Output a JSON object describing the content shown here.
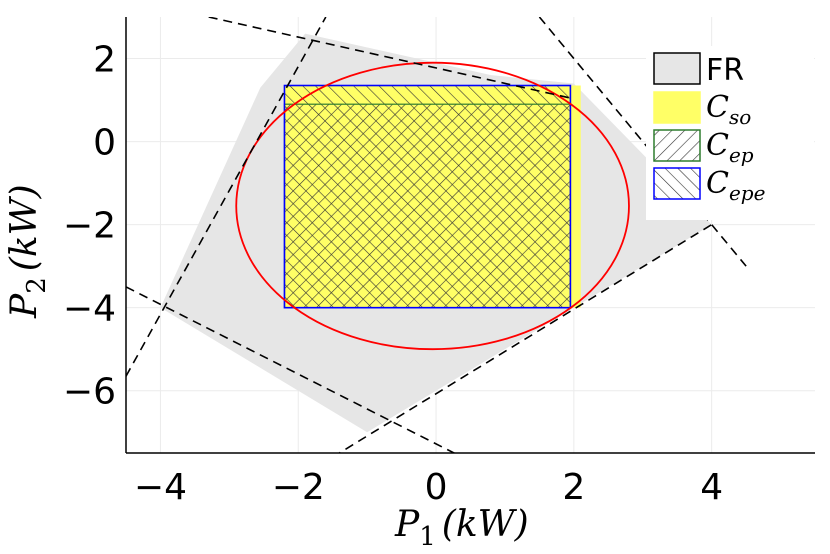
{
  "chart_data": {
    "type": "area",
    "xlabel": {
      "main": "P",
      "sub": "1",
      "unit": "(kW)"
    },
    "ylabel": {
      "main": "P",
      "sub": "2",
      "unit": "(kW)"
    },
    "xlim": [
      -4.5,
      5.5
    ],
    "ylim": [
      -7.5,
      3.0
    ],
    "xticks": [
      -4,
      -2,
      0,
      2,
      4
    ],
    "yticks": [
      -6,
      -4,
      -2,
      0,
      2
    ],
    "xtick_labels": [
      "−4",
      "−2",
      "0",
      "2",
      "4"
    ],
    "ytick_labels": [
      "−6",
      "−4",
      "−2",
      "0",
      "2"
    ],
    "grid": true,
    "legend_position": "top-right",
    "feasible_region": {
      "name": "FR",
      "polygon": [
        [
          -1.9,
          2.6
        ],
        [
          -2.55,
          1.3
        ],
        [
          -4.0,
          -4.0
        ],
        [
          -1.0,
          -7.0
        ],
        [
          4.0,
          -2.0
        ],
        [
          2.0,
          1.4
        ],
        [
          0.8,
          1.6
        ]
      ],
      "color": "#e6e6e6"
    },
    "boundary_lines": [
      {
        "x": [
          -3.3,
          2.0
        ],
        "y": [
          3.0,
          1.03
        ]
      },
      {
        "x": [
          1.5,
          4.5
        ],
        "y": [
          3.0,
          -3.0
        ]
      },
      {
        "x": [
          -4.5,
          0.5
        ],
        "y": [
          -3.5,
          -7.7
        ]
      },
      {
        "x": [
          -1.5,
          4.0
        ],
        "y": [
          -7.6,
          -2.0
        ]
      },
      {
        "x": [
          -4.5,
          -1.6
        ],
        "y": [
          -5.65,
          3.0
        ]
      }
    ],
    "ellipse": {
      "center": [
        -0.05,
        -1.55
      ],
      "rx": 2.85,
      "ry": 3.45,
      "color": "#ff0000"
    },
    "rectangles": [
      {
        "name": "C",
        "sub": "so",
        "x": [
          -2.2,
          2.1
        ],
        "y": [
          -4.0,
          1.35
        ],
        "fill": "#ffff66",
        "stroke": "#ffff66"
      },
      {
        "name": "C",
        "sub": "ep",
        "x": [
          -2.2,
          1.95
        ],
        "y": [
          -4.0,
          0.9
        ],
        "hatch": true,
        "stroke": "#2e7d2e"
      },
      {
        "name": "C",
        "sub": "epe",
        "x": [
          -2.2,
          1.95
        ],
        "y": [
          -4.0,
          1.35
        ],
        "hatch": true,
        "stroke": "#0000ff"
      }
    ]
  }
}
